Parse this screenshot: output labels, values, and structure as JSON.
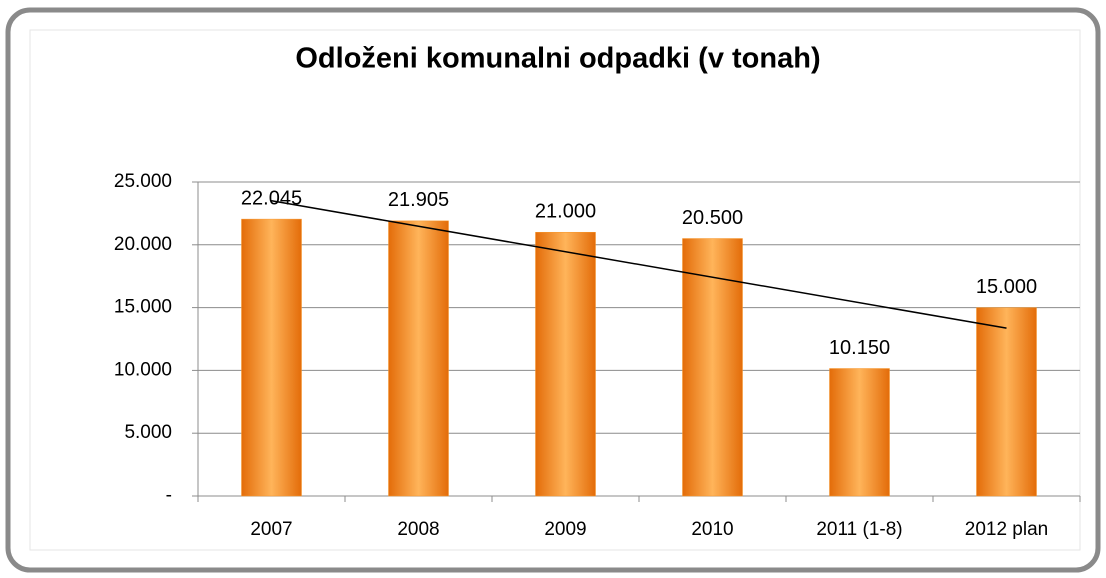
{
  "chart_data": {
    "type": "bar",
    "title": "Odloženi komunalni odpadki (v tonah)",
    "categories": [
      "2007",
      "2008",
      "2009",
      "2010",
      "2011 (1-8)",
      "2012 plan"
    ],
    "values": [
      22045,
      21905,
      21000,
      20500,
      10150,
      15000
    ],
    "value_labels": [
      "22.045",
      "21.905",
      "21.000",
      "20.500",
      "10.150",
      "15.000"
    ],
    "color": "#f7962a",
    "ylim": [
      0,
      25000
    ],
    "yticks": [
      {
        "value": 0,
        "label": "-"
      },
      {
        "value": 5000,
        "label": "5.000"
      },
      {
        "value": 10000,
        "label": "10.000"
      },
      {
        "value": 15000,
        "label": "15.000"
      },
      {
        "value": 20000,
        "label": "20.000"
      },
      {
        "value": 25000,
        "label": "25.000"
      }
    ],
    "grid": true,
    "trendline": "linear"
  }
}
